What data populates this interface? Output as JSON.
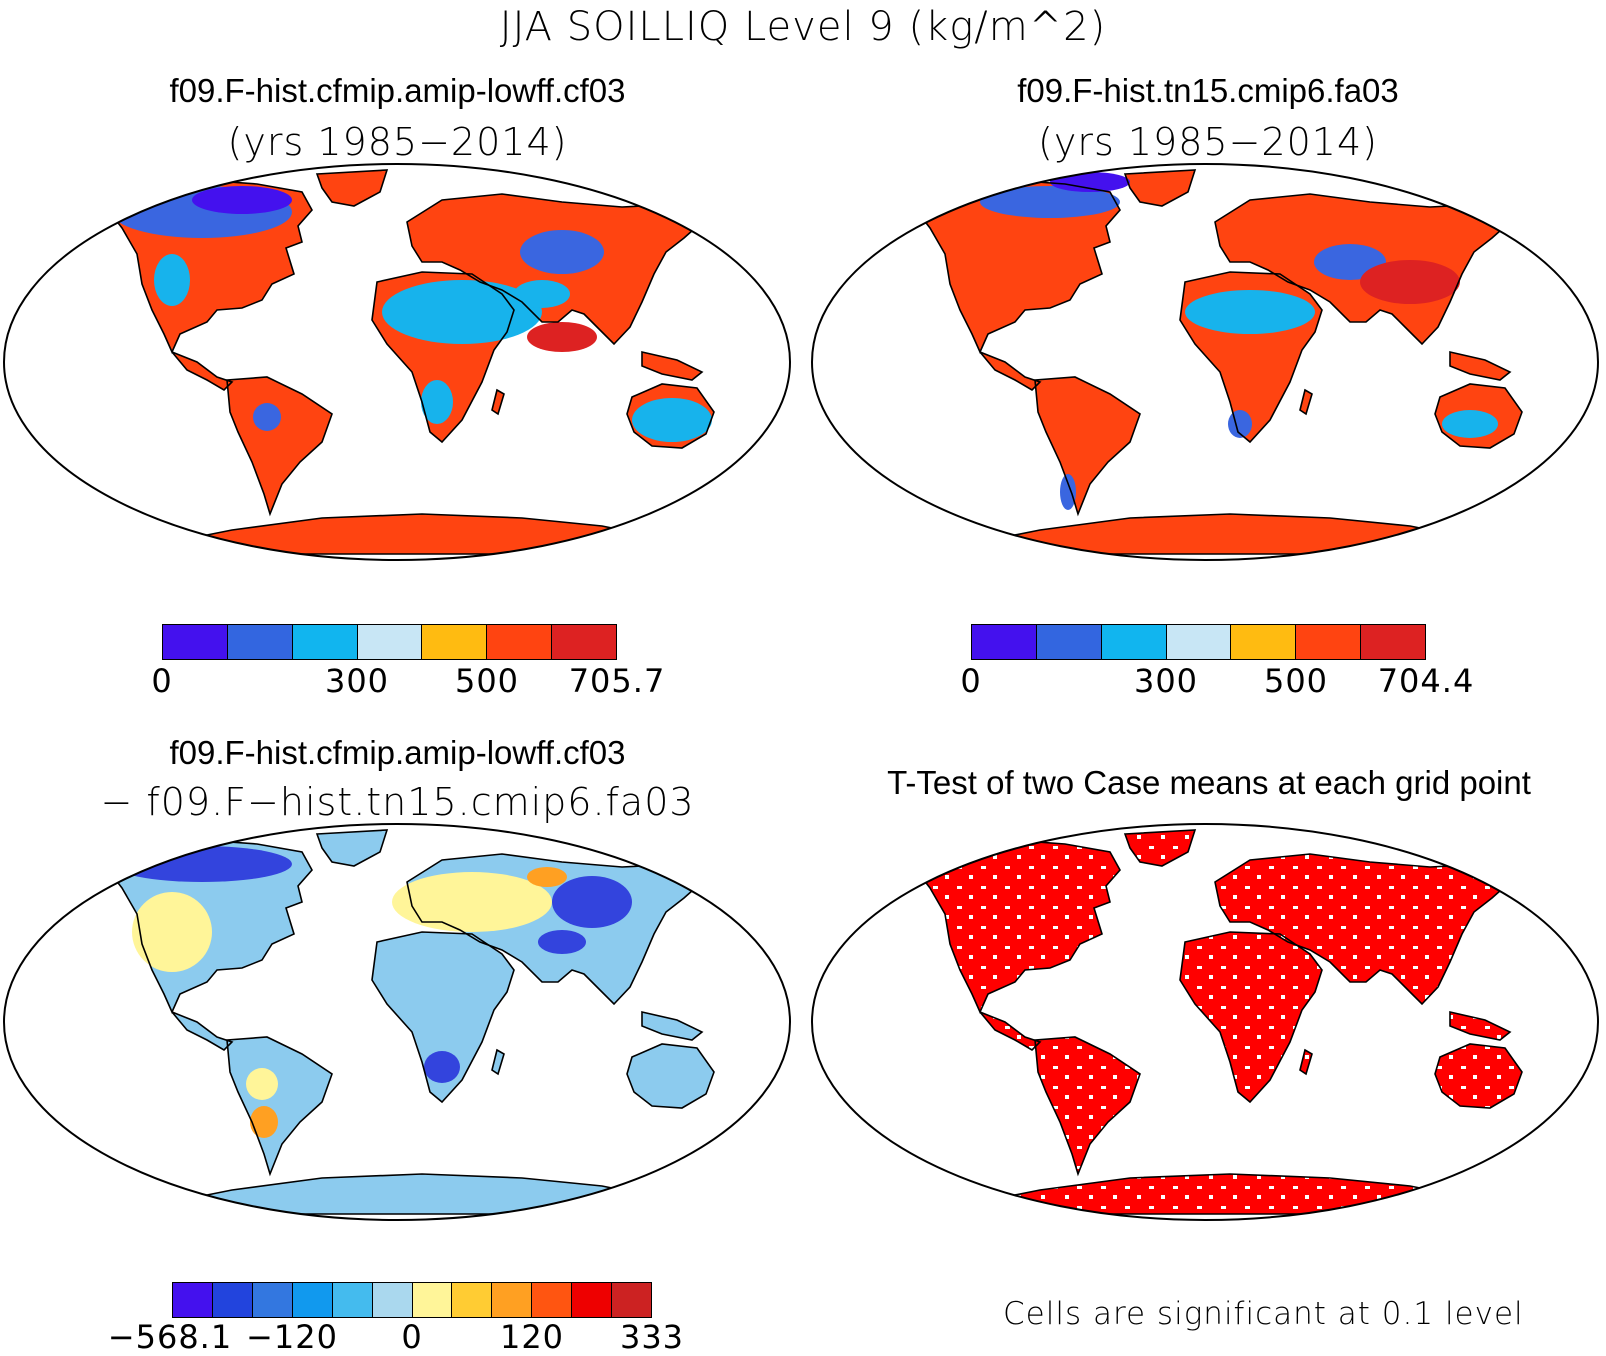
{
  "figure_title": "JJA SOILLIQ Level 9 (kg/m^2)",
  "panels": {
    "top_left": {
      "title": "f09.F-hist.cfmip.amip-lowff.cf03",
      "subtitle": "(yrs 1985−2014)",
      "colorbar": {
        "colors": [
          "#4411ee",
          "#3366e0",
          "#11b5ef",
          "#c8e6f5",
          "#ffbb11",
          "#ff4411",
          "#dd2222"
        ],
        "tick_labels": [
          "0",
          "300",
          "500",
          "705.7"
        ]
      }
    },
    "top_right": {
      "title": "f09.F-hist.tn15.cmip6.fa03",
      "subtitle": "(yrs 1985−2014)",
      "colorbar": {
        "colors": [
          "#4411ee",
          "#3366e0",
          "#11b5ef",
          "#c8e6f5",
          "#ffbb11",
          "#ff4411",
          "#dd2222"
        ],
        "tick_labels": [
          "0",
          "300",
          "500",
          "704.4"
        ]
      }
    },
    "bottom_left": {
      "title": "f09.F-hist.cfmip.amip-lowff.cf03",
      "subtitle": "− f09.F−hist.tn15.cmip6.fa03",
      "colorbar": {
        "colors": [
          "#4411ee",
          "#2244dd",
          "#3377e0",
          "#1199ee",
          "#44bbee",
          "#aad8ee",
          "#fff599",
          "#ffcc33",
          "#ffa022",
          "#ff5511",
          "#ee0000",
          "#cc2222"
        ],
        "tick_labels": [
          "−568.1",
          "−120",
          "0",
          "120",
          "333"
        ]
      }
    },
    "bottom_right": {
      "title": "T-Test of two Case means at each grid point",
      "footnote": "Cells are significant at 0.1 level"
    }
  },
  "map_colors": {
    "abs_low": "#3a66e0",
    "abs_mid": "#17b3ec",
    "abs_high": "#ff4411",
    "abs_max": "#dd2222",
    "abs_min": "#4411ee",
    "diff_neg_strong": "#3344dd",
    "diff_neg": "#8ccbee",
    "diff_zero": "#fff599",
    "diff_pos": "#ffa022",
    "signif": "#ff0000"
  }
}
